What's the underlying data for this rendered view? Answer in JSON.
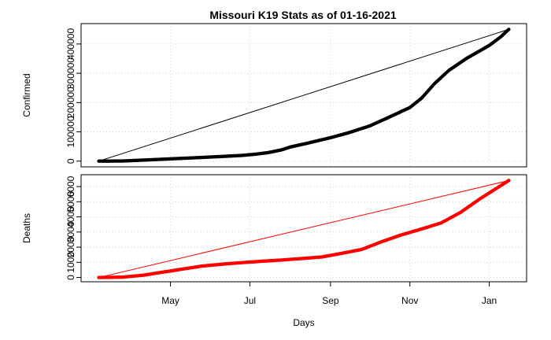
{
  "title": "Missouri K19 Stats as of 01-16-2021",
  "chart_data": [
    {
      "type": "line",
      "ylabel": "Confirmed",
      "ylim": [
        0,
        450000
      ],
      "yticks": [
        0,
        100000,
        200000,
        300000,
        400000
      ],
      "xlim": [
        "2020-03-07",
        "2021-01-16"
      ],
      "grid": true,
      "series": [
        {
          "color": "#000000",
          "style": "points",
          "points": [
            [
              "2020-03-07",
              0
            ],
            [
              "2020-03-25",
              400
            ],
            [
              "2020-04-10",
              3500
            ],
            [
              "2020-04-25",
              6500
            ],
            [
              "2020-05-10",
              9500
            ],
            [
              "2020-05-25",
              12500
            ],
            [
              "2020-06-10",
              16000
            ],
            [
              "2020-06-25",
              19500
            ],
            [
              "2020-07-05",
              23500
            ],
            [
              "2020-07-15",
              29000
            ],
            [
              "2020-07-25",
              38000
            ],
            [
              "2020-08-01",
              48000
            ],
            [
              "2020-08-15",
              62000
            ],
            [
              "2020-09-01",
              80000
            ],
            [
              "2020-09-15",
              97000
            ],
            [
              "2020-10-01",
              120000
            ],
            [
              "2020-10-15",
              148000
            ],
            [
              "2020-11-01",
              183000
            ],
            [
              "2020-11-10",
              215000
            ],
            [
              "2020-11-20",
              265000
            ],
            [
              "2020-12-01",
              310000
            ],
            [
              "2020-12-15",
              352000
            ],
            [
              "2021-01-01",
              395000
            ],
            [
              "2021-01-10",
              425000
            ],
            [
              "2021-01-16",
              450000
            ]
          ]
        },
        {
          "color": "#000000",
          "style": "line",
          "points": [
            [
              "2020-03-07",
              0
            ],
            [
              "2021-01-16",
              450000
            ]
          ]
        }
      ]
    },
    {
      "type": "line",
      "ylabel": "Deaths",
      "xlabel": "Days",
      "ylim": [
        0,
        6500
      ],
      "yticks": [
        0,
        1000,
        2000,
        3000,
        4000,
        5000,
        6000
      ],
      "xlim": [
        "2020-03-07",
        "2021-01-16"
      ],
      "xticks": [
        {
          "date": "2020-05-01",
          "label": "May"
        },
        {
          "date": "2020-07-01",
          "label": "Jul"
        },
        {
          "date": "2020-09-01",
          "label": "Sep"
        },
        {
          "date": "2020-11-01",
          "label": "Nov"
        },
        {
          "date": "2021-01-01",
          "label": "Jan"
        }
      ],
      "grid": true,
      "series": [
        {
          "color": "#ff0000",
          "style": "points",
          "points": [
            [
              "2020-03-07",
              0
            ],
            [
              "2020-03-25",
              20
            ],
            [
              "2020-04-10",
              150
            ],
            [
              "2020-04-25",
              350
            ],
            [
              "2020-05-10",
              550
            ],
            [
              "2020-05-25",
              750
            ],
            [
              "2020-06-10",
              880
            ],
            [
              "2020-06-25",
              980
            ],
            [
              "2020-07-10",
              1070
            ],
            [
              "2020-07-25",
              1150
            ],
            [
              "2020-08-10",
              1250
            ],
            [
              "2020-08-25",
              1350
            ],
            [
              "2020-09-10",
              1600
            ],
            [
              "2020-09-25",
              1850
            ],
            [
              "2020-10-10",
              2350
            ],
            [
              "2020-10-25",
              2800
            ],
            [
              "2020-11-10",
              3200
            ],
            [
              "2020-11-25",
              3600
            ],
            [
              "2020-12-10",
              4300
            ],
            [
              "2020-12-25",
              5200
            ],
            [
              "2021-01-05",
              5800
            ],
            [
              "2021-01-16",
              6400
            ]
          ]
        },
        {
          "color": "#ff0000",
          "style": "line",
          "points": [
            [
              "2020-03-07",
              0
            ],
            [
              "2021-01-16",
              6400
            ]
          ]
        }
      ]
    }
  ]
}
